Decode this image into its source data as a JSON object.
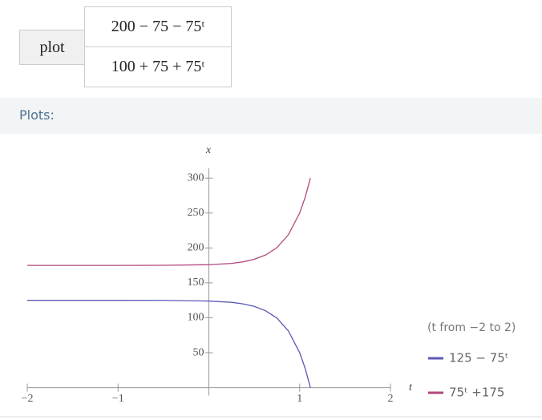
{
  "input": {
    "label": "plot",
    "rows": [
      "200 − 75 − 75ᵗ",
      "100 + 75 + 75ᵗ"
    ]
  },
  "section_title": "Plots:",
  "chart_data": {
    "type": "line",
    "x_label": "t",
    "y_label": "x",
    "range_note": "(t from −2 to 2)",
    "x": [
      -2,
      -1,
      -0.5,
      0,
      0.25,
      0.375,
      0.5,
      0.625,
      0.75,
      0.875,
      1,
      1.06,
      1.118
    ],
    "series": [
      {
        "name": "125 − 75ᵗ",
        "color": "#5b58b6",
        "values": [
          125,
          125,
          124.9,
          124,
          122.1,
          119.9,
          116.3,
          110.1,
          99.5,
          81.3,
          50,
          27.8,
          0
        ]
      },
      {
        "name": "75ᵗ +175",
        "color": "#b3477d",
        "values": [
          175,
          175,
          175.1,
          176,
          177.9,
          180.1,
          183.7,
          189.9,
          200.5,
          218.7,
          250,
          272.2,
          300
        ]
      }
    ],
    "xlim": [
      -2,
      2
    ],
    "ylim": [
      0,
      314
    ],
    "xticks": [
      {
        "value": -2,
        "label": "−2"
      },
      {
        "value": -1,
        "label": "−1"
      },
      1,
      2
    ],
    "yticks": [
      50,
      100,
      150,
      200,
      250,
      300
    ]
  }
}
